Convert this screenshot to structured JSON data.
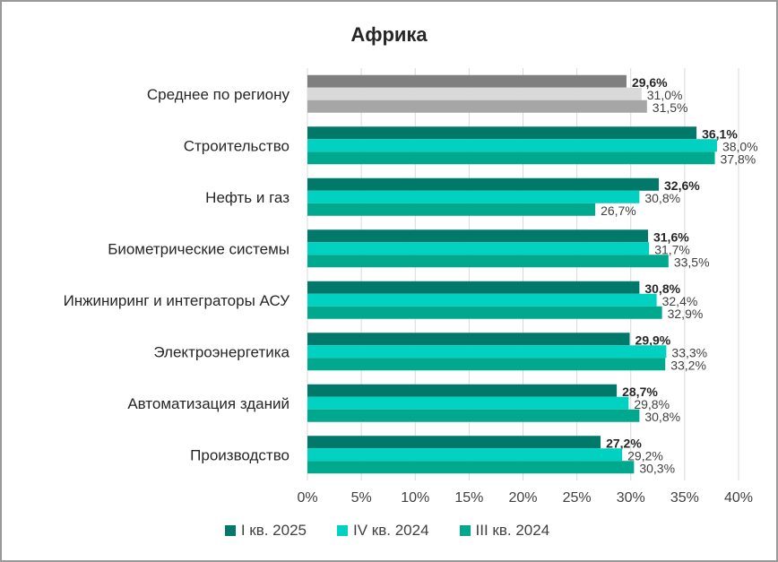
{
  "chart_data": {
    "type": "bar",
    "orientation": "horizontal",
    "title": "Африка",
    "categories": [
      "Среднее по региону",
      "Строительство",
      "Нефть и газ",
      "Биометрические системы",
      "Инжиниринг и интеграторы АСУ",
      "Электроэнергетика",
      "Автоматизация зданий",
      "Производство"
    ],
    "series": [
      {
        "name": "I кв. 2025",
        "values": [
          29.6,
          36.1,
          32.6,
          31.6,
          30.8,
          29.9,
          28.7,
          27.2
        ]
      },
      {
        "name": "IV кв. 2024",
        "values": [
          31.0,
          38.0,
          30.8,
          31.7,
          32.4,
          33.3,
          29.8,
          29.2
        ]
      },
      {
        "name": "III кв. 2024",
        "values": [
          31.5,
          37.8,
          26.7,
          33.5,
          32.9,
          33.2,
          30.8,
          30.3
        ]
      }
    ],
    "data_labels": [
      [
        "29,6%",
        "31,0%",
        "31,5%"
      ],
      [
        "36,1%",
        "38,0%",
        "37,8%"
      ],
      [
        "32,6%",
        "30,8%",
        "26,7%"
      ],
      [
        "31,6%",
        "31,7%",
        "33,5%"
      ],
      [
        "30,8%",
        "32,4%",
        "32,9%"
      ],
      [
        "29,9%",
        "33,3%",
        "33,2%"
      ],
      [
        "28,7%",
        "29,8%",
        "30,8%"
      ],
      [
        "27,2%",
        "29,2%",
        "30,3%"
      ]
    ],
    "x_ticks": [
      "0%",
      "5%",
      "10%",
      "15%",
      "20%",
      "25%",
      "30%",
      "35%",
      "40%"
    ],
    "xlim": [
      0,
      40
    ],
    "grid": "vertical",
    "legend_position": "bottom",
    "colors": [
      "#00796b",
      "#00d1c1",
      "#00a88e"
    ],
    "average_colors": [
      "#7f7f7f",
      "#d9d9d9",
      "#a6a6a6"
    ]
  }
}
